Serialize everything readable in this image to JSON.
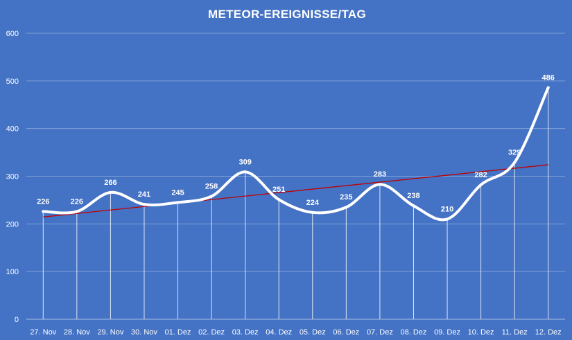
{
  "chart_data": {
    "type": "line",
    "title": "METEOR-EREIGNISSE/TAG",
    "categories": [
      "27. Nov",
      "28. Nov",
      "29. Nov",
      "30. Nov",
      "01. Dez",
      "02. Dez",
      "03. Dez",
      "04. Dez",
      "05. Dez",
      "06. Dez",
      "07. Dez",
      "08. Dez",
      "09. Dez",
      "10. Dez",
      "11. Dez",
      "12. Dez"
    ],
    "series": [
      {
        "values": [
          226,
          226,
          266,
          241,
          245,
          258,
          309,
          251,
          224,
          235,
          283,
          238,
          210,
          282,
          329,
          486
        ],
        "color": "#ffffff",
        "smooth": true,
        "data_labels": true,
        "drop_lines": true
      }
    ],
    "trendline": {
      "type": "linear",
      "color": "#c00000"
    },
    "xlabel": "",
    "ylabel": "",
    "ylim": [
      0,
      600
    ],
    "yticks": [
      0,
      100,
      200,
      300,
      400,
      500,
      600
    ],
    "grid": true,
    "legend": "none",
    "colors": {
      "background": "#4472c4",
      "grid": "#7f9fd8",
      "text": "#ffffff"
    }
  }
}
